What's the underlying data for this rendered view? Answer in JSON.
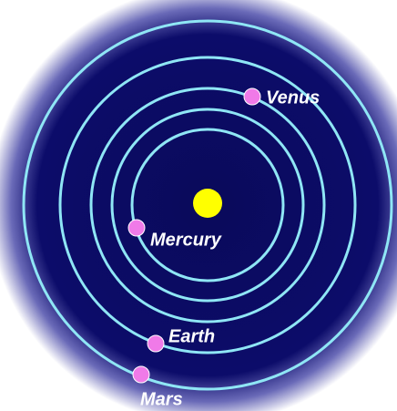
{
  "nodes": [
    {
      "label": "Venus"
    },
    {
      "label": "Mercury"
    },
    {
      "label": "Earth"
    },
    {
      "label": "Mars"
    }
  ]
}
